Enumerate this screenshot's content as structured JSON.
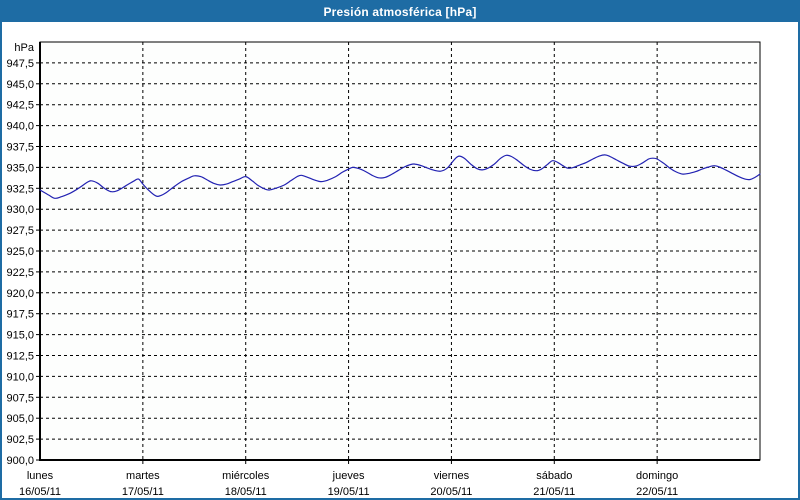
{
  "colors": {
    "accent": "#1e6ca4",
    "line": "#2222b2",
    "grid": "#000000",
    "text": "#000000",
    "plot_bg": "#fdfefd"
  },
  "chart_data": {
    "type": "line",
    "title": "Presión atmosférica [hPa]",
    "unit_label": "hPa",
    "ylim": [
      900,
      950
    ],
    "yticks": [
      900,
      902.5,
      905,
      907.5,
      910,
      912.5,
      915,
      917.5,
      920,
      922.5,
      925,
      927.5,
      930,
      932.5,
      935,
      937.5,
      940,
      942.5,
      945,
      947.5
    ],
    "ytick_decimal_separator": ",",
    "grid": "dashed",
    "legend": "none",
    "hours_per_day": 24,
    "categories": [
      {
        "day": "lunes",
        "date": "16/05/11"
      },
      {
        "day": "martes",
        "date": "17/05/11"
      },
      {
        "day": "miércoles",
        "date": "18/05/11"
      },
      {
        "day": "jueves",
        "date": "19/05/11"
      },
      {
        "day": "viernes",
        "date": "20/05/11"
      },
      {
        "day": "sábado",
        "date": "21/05/11"
      },
      {
        "day": "domingo",
        "date": "22/05/11"
      }
    ],
    "series": [
      {
        "name": "Presión atmosférica",
        "x_unit": "hours",
        "points": [
          [
            0,
            932.3
          ],
          [
            2,
            931.7
          ],
          [
            3.5,
            931.3
          ],
          [
            5,
            931.5
          ],
          [
            7,
            931.9
          ],
          [
            9,
            932.5
          ],
          [
            11,
            933.2
          ],
          [
            12,
            933.4
          ],
          [
            13.5,
            933.1
          ],
          [
            15,
            932.5
          ],
          [
            16.5,
            932.1
          ],
          [
            18,
            932.2
          ],
          [
            20,
            932.8
          ],
          [
            22,
            933.4
          ],
          [
            23,
            933.6
          ],
          [
            24,
            933.0
          ],
          [
            25.5,
            932.2
          ],
          [
            27,
            931.6
          ],
          [
            28,
            931.6
          ],
          [
            29.5,
            932.0
          ],
          [
            31,
            932.6
          ],
          [
            33,
            933.3
          ],
          [
            35,
            933.8
          ],
          [
            36,
            934.0
          ],
          [
            37.5,
            933.9
          ],
          [
            39,
            933.5
          ],
          [
            40.5,
            933.1
          ],
          [
            42,
            932.9
          ],
          [
            43.5,
            933.0
          ],
          [
            45,
            933.3
          ],
          [
            46.5,
            933.6
          ],
          [
            48,
            933.9
          ],
          [
            49.5,
            933.4
          ],
          [
            51,
            932.8
          ],
          [
            52.5,
            932.4
          ],
          [
            53.5,
            932.3
          ],
          [
            55,
            932.5
          ],
          [
            57,
            932.9
          ],
          [
            58.5,
            933.4
          ],
          [
            60,
            933.9
          ],
          [
            61,
            934.05
          ],
          [
            62.5,
            933.8
          ],
          [
            64,
            933.5
          ],
          [
            65.5,
            933.3
          ],
          [
            67,
            933.45
          ],
          [
            69,
            933.9
          ],
          [
            70.5,
            934.4
          ],
          [
            72,
            934.8
          ],
          [
            73,
            935.0
          ],
          [
            74.5,
            934.85
          ],
          [
            76,
            934.5
          ],
          [
            77.5,
            934.05
          ],
          [
            79,
            933.75
          ],
          [
            80.5,
            933.8
          ],
          [
            82,
            934.15
          ],
          [
            83.5,
            934.6
          ],
          [
            85,
            935.05
          ],
          [
            86.5,
            935.35
          ],
          [
            87.5,
            935.4
          ],
          [
            89,
            935.2
          ],
          [
            90.5,
            934.9
          ],
          [
            92,
            934.65
          ],
          [
            93.5,
            934.55
          ],
          [
            95,
            934.9
          ],
          [
            96,
            935.5
          ],
          [
            97,
            936.1
          ],
          [
            97.8,
            936.35
          ],
          [
            99,
            936.1
          ],
          [
            100.5,
            935.4
          ],
          [
            102,
            934.85
          ],
          [
            103.2,
            934.7
          ],
          [
            104.5,
            934.9
          ],
          [
            106,
            935.4
          ],
          [
            107.5,
            936.1
          ],
          [
            108.8,
            936.45
          ],
          [
            110,
            936.3
          ],
          [
            111.5,
            935.8
          ],
          [
            113,
            935.2
          ],
          [
            114.5,
            934.75
          ],
          [
            115.8,
            934.6
          ],
          [
            117,
            934.8
          ],
          [
            118.5,
            935.4
          ],
          [
            119.6,
            935.8
          ],
          [
            120.8,
            935.6
          ],
          [
            122,
            935.2
          ],
          [
            123.2,
            934.9
          ],
          [
            124.5,
            935.0
          ],
          [
            126,
            935.3
          ],
          [
            127.5,
            935.6
          ],
          [
            129,
            936.0
          ],
          [
            130.5,
            936.35
          ],
          [
            131.8,
            936.5
          ],
          [
            133,
            936.3
          ],
          [
            134.5,
            935.9
          ],
          [
            136,
            935.5
          ],
          [
            137.5,
            935.15
          ],
          [
            139,
            935.15
          ],
          [
            140.5,
            935.5
          ],
          [
            142,
            936.0
          ],
          [
            143,
            936.1
          ],
          [
            144,
            936.0
          ],
          [
            145.5,
            935.5
          ],
          [
            147,
            934.9
          ],
          [
            148.5,
            934.45
          ],
          [
            150,
            934.2
          ],
          [
            151.5,
            934.3
          ],
          [
            153,
            934.5
          ],
          [
            154.5,
            934.8
          ],
          [
            156,
            935.05
          ],
          [
            157.3,
            935.2
          ],
          [
            158.5,
            935.05
          ],
          [
            160,
            934.7
          ],
          [
            161.5,
            934.3
          ],
          [
            163,
            933.9
          ],
          [
            164.5,
            933.6
          ],
          [
            165.7,
            933.55
          ],
          [
            166.8,
            933.8
          ],
          [
            168,
            934.2
          ]
        ]
      }
    ]
  }
}
